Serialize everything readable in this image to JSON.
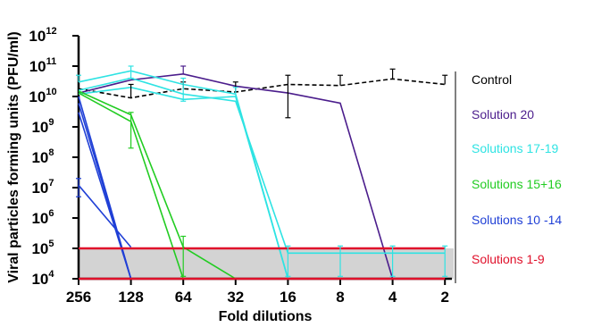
{
  "chart_data": {
    "type": "line",
    "xlabel": "Fold dilutions",
    "ylabel": "Viral particles forming units (PFU/ml)",
    "x_categories": [
      "256",
      "128",
      "64",
      "32",
      "16",
      "8",
      "4",
      "2"
    ],
    "y_scale": "log10",
    "ylim": [
      10000,
      1000000000000
    ],
    "y_ticks": [
      {
        "base": "10",
        "exp": "4"
      },
      {
        "base": "10",
        "exp": "5"
      },
      {
        "base": "10",
        "exp": "6"
      },
      {
        "base": "10",
        "exp": "7"
      },
      {
        "base": "10",
        "exp": "8"
      },
      {
        "base": "10",
        "exp": "9"
      },
      {
        "base": "10",
        "exp": "10"
      },
      {
        "base": "10",
        "exp": "11"
      },
      {
        "base": "10",
        "exp": "12"
      }
    ],
    "shaded_band": {
      "from": 10000,
      "to": 100000,
      "color": "#d3d3d3"
    },
    "legend": [
      {
        "label": "Control",
        "color": "#000000"
      },
      {
        "label": "Solution 20",
        "color": "#4b1d8c"
      },
      {
        "label": "Solutions 17-19",
        "color": "#2ee3e3"
      },
      {
        "label": "Solutions 15+16",
        "color": "#22cc22"
      },
      {
        "label": "Solutions 10 -14",
        "color": "#1f3fd6"
      },
      {
        "label": "Solutions 1-9",
        "color": "#e0112b"
      }
    ],
    "series": [
      {
        "group": "Control",
        "color": "#000000",
        "dashed": true,
        "values": [
          18000000000.0,
          9000000000.0,
          18000000000.0,
          14000000000.0,
          25000000000.0,
          23000000000.0,
          38000000000.0,
          25000000000.0
        ],
        "err_upper": [
          null,
          25000000000.0,
          30000000000.0,
          30000000000.0,
          50000000000.0,
          50000000000.0,
          80000000000.0,
          50000000000.0
        ],
        "err_lower": [
          null,
          null,
          null,
          null,
          2000000000.0,
          null,
          null,
          null
        ]
      },
      {
        "group": "Solution 20",
        "color": "#4b1d8c",
        "dashed": false,
        "values": [
          13000000000.0,
          35000000000.0,
          55000000000.0,
          22000000000.0,
          13000000000.0,
          6000000000.0,
          10000,
          null
        ],
        "err_upper": [
          null,
          null,
          100000000000.0,
          null,
          null,
          null,
          null,
          null
        ],
        "err_lower": [
          null,
          null,
          null,
          null,
          null,
          null,
          null,
          null
        ]
      },
      {
        "group": "Solutions 17-19",
        "color": "#2ee3e3",
        "dashed": false,
        "values": [
          30000000000.0,
          70000000000.0,
          25000000000.0,
          12000000000.0,
          10000,
          null,
          null,
          null
        ],
        "err_upper": [
          50000000000.0,
          100000000000.0,
          40000000000.0,
          20000000000.0,
          null,
          null,
          null,
          null
        ],
        "err_lower": [
          null,
          40000000000.0,
          7000000000.0,
          null,
          null,
          null,
          null,
          null
        ]
      },
      {
        "group": "Solutions 17-19",
        "color": "#2ee3e3",
        "dashed": false,
        "values": [
          16000000000.0,
          40000000000.0,
          12000000000.0,
          7000000000.0,
          70000,
          70000,
          70000,
          70000
        ],
        "err_upper": [
          null,
          null,
          null,
          null,
          120000,
          120000,
          120000,
          120000
        ],
        "err_lower": [
          null,
          null,
          null,
          null,
          12000,
          12000,
          12000,
          12000
        ]
      },
      {
        "group": "Solutions 17-19",
        "color": "#2ee3e3",
        "dashed": false,
        "values": [
          12000000000.0,
          20000000000.0,
          8000000000.0,
          10000000000.0,
          10000,
          null,
          null,
          null
        ],
        "err_upper": [
          null,
          null,
          null,
          null,
          null,
          null,
          null,
          null
        ],
        "err_lower": [
          null,
          null,
          null,
          null,
          null,
          null,
          null,
          null
        ]
      },
      {
        "group": "Solutions 15+16",
        "color": "#22cc22",
        "dashed": false,
        "values": [
          15000000000.0,
          2500000000.0,
          110000,
          10000,
          null,
          null,
          null,
          null
        ],
        "err_upper": [
          null,
          3000000000.0,
          250000,
          null,
          null,
          null,
          null,
          null
        ],
        "err_lower": [
          null,
          200000000.0,
          12000,
          null,
          null,
          null,
          null,
          null
        ]
      },
      {
        "group": "Solutions 15+16",
        "color": "#22cc22",
        "dashed": false,
        "values": [
          13000000000.0,
          1500000000.0,
          10000,
          null,
          null,
          null,
          null,
          null
        ],
        "err_upper": [
          null,
          null,
          null,
          null,
          null,
          null,
          null,
          null
        ],
        "err_lower": [
          null,
          null,
          null,
          null,
          null,
          null,
          null,
          null
        ]
      },
      {
        "group": "Solutions 10 -14",
        "color": "#1f3fd6",
        "dashed": false,
        "values": [
          12000000.0,
          110000,
          null,
          null,
          null,
          null,
          null,
          null
        ],
        "err_upper": [
          20000000.0,
          null,
          null,
          null,
          null,
          null,
          null,
          null
        ],
        "err_lower": [
          5000000.0,
          null,
          null,
          null,
          null,
          null,
          null,
          null
        ]
      },
      {
        "group": "Solutions 10 -14",
        "color": "#1f3fd6",
        "dashed": false,
        "values": [
          10000000000.0,
          10000,
          null,
          null,
          null,
          null,
          null,
          null
        ],
        "err_upper": [
          null,
          null,
          null,
          null,
          null,
          null,
          null,
          null
        ],
        "err_lower": [
          null,
          null,
          null,
          null,
          null,
          null,
          null,
          null
        ]
      },
      {
        "group": "Solutions 10 -14",
        "color": "#1f3fd6",
        "dashed": false,
        "values": [
          6000000000.0,
          10000,
          null,
          null,
          null,
          null,
          null,
          null
        ],
        "err_upper": [
          null,
          null,
          null,
          null,
          null,
          null,
          null,
          null
        ],
        "err_lower": [
          null,
          null,
          null,
          null,
          null,
          null,
          null,
          null
        ]
      },
      {
        "group": "Solutions 10 -14",
        "color": "#1f3fd6",
        "dashed": false,
        "values": [
          3000000000.0,
          10000,
          null,
          null,
          null,
          null,
          null,
          null
        ],
        "err_upper": [
          null,
          null,
          null,
          null,
          null,
          null,
          null,
          null
        ],
        "err_lower": [
          null,
          null,
          null,
          null,
          null,
          null,
          null,
          null
        ]
      },
      {
        "group": "Solutions 1-9",
        "color": "#e0112b",
        "dashed": false,
        "values": [
          100000,
          100000,
          100000,
          100000,
          100000,
          100000,
          100000,
          100000
        ],
        "err_upper": [
          null,
          null,
          null,
          null,
          null,
          null,
          null,
          null
        ],
        "err_lower": [
          null,
          null,
          null,
          null,
          null,
          null,
          null,
          null
        ]
      },
      {
        "group": "Solutions 1-9",
        "color": "#e0112b",
        "dashed": false,
        "values": [
          10000,
          10000,
          10000,
          10000,
          10000,
          10000,
          10000,
          10000
        ],
        "err_upper": [
          null,
          null,
          null,
          null,
          null,
          null,
          null,
          null
        ],
        "err_lower": [
          null,
          null,
          null,
          null,
          null,
          null,
          null,
          null
        ]
      }
    ]
  }
}
